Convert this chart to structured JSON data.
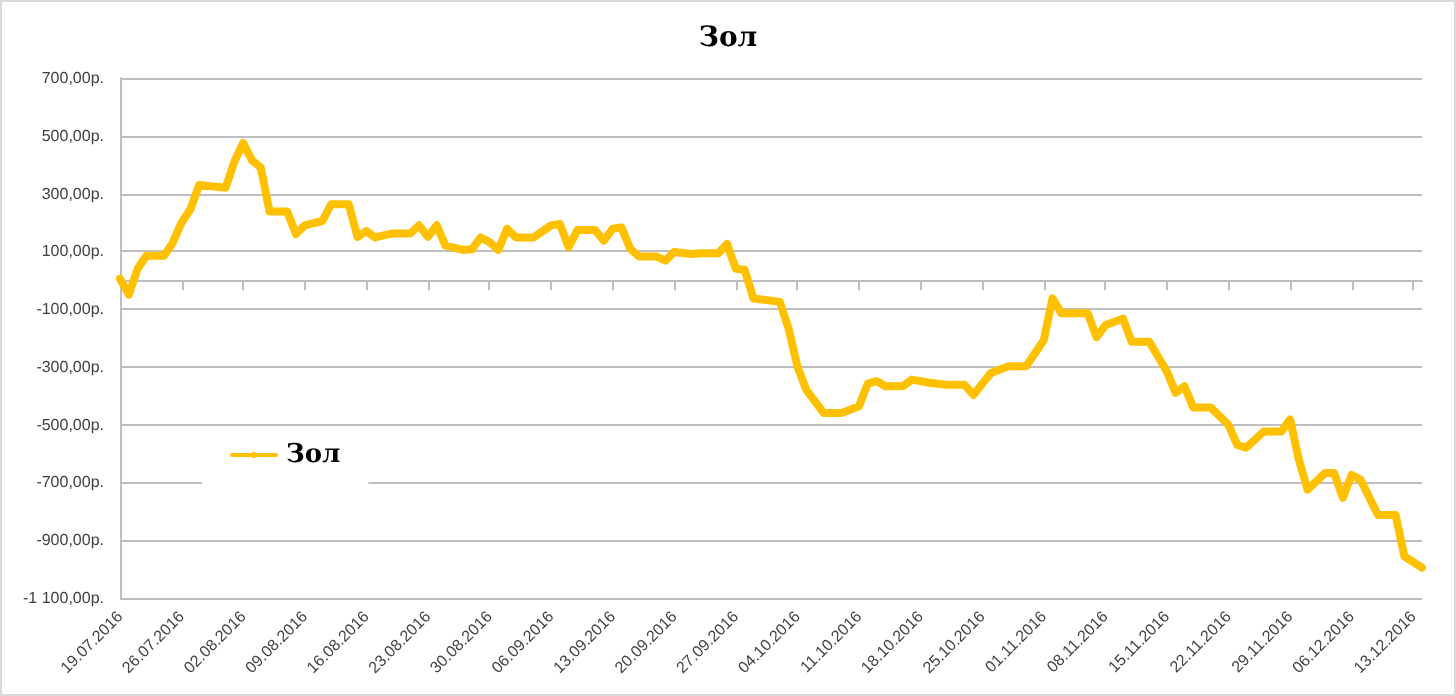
{
  "chart_data": {
    "type": "line",
    "title": "Зол",
    "legend": "left",
    "grid": "y",
    "marker": "none",
    "line_style": "solid",
    "xlim": [
      "2016-07-19",
      "2016-12-14"
    ],
    "xticks": [
      {
        "value": "2016-07-19",
        "label": "19.07.2016"
      },
      {
        "value": "2016-07-26",
        "label": "26.07.2016"
      },
      {
        "value": "2016-08-02",
        "label": "02.08.2016"
      },
      {
        "value": "2016-08-09",
        "label": "09.08.2016"
      },
      {
        "value": "2016-08-16",
        "label": "16.08.2016"
      },
      {
        "value": "2016-08-23",
        "label": "23.08.2016"
      },
      {
        "value": "2016-08-30",
        "label": "30.08.2016"
      },
      {
        "value": "2016-09-06",
        "label": "06.09.2016"
      },
      {
        "value": "2016-09-13",
        "label": "13.09.2016"
      },
      {
        "value": "2016-09-20",
        "label": "20.09.2016"
      },
      {
        "value": "2016-09-27",
        "label": "27.09.2016"
      },
      {
        "value": "2016-10-04",
        "label": "04.10.2016"
      },
      {
        "value": "2016-10-11",
        "label": "11.10.2016"
      },
      {
        "value": "2016-10-18",
        "label": "18.10.2016"
      },
      {
        "value": "2016-10-25",
        "label": "25.10.2016"
      },
      {
        "value": "2016-11-01",
        "label": "01.11.2016"
      },
      {
        "value": "2016-11-08",
        "label": "08.11.2016"
      },
      {
        "value": "2016-11-15",
        "label": "15.11.2016"
      },
      {
        "value": "2016-11-22",
        "label": "22.11.2016"
      },
      {
        "value": "2016-11-29",
        "label": "29.11.2016"
      },
      {
        "value": "2016-12-06",
        "label": "06.12.2016"
      },
      {
        "value": "2016-12-13",
        "label": "13.12.2016"
      }
    ],
    "ylim": [
      -1100,
      700
    ],
    "yticks": [
      {
        "value": -1100,
        "label": "-1 100,00р."
      },
      {
        "value": -900,
        "label": "-900,00р."
      },
      {
        "value": -700,
        "label": "-700,00р."
      },
      {
        "value": -500,
        "label": "-500,00р."
      },
      {
        "value": -300,
        "label": "-300,00р."
      },
      {
        "value": -100,
        "label": "-100,00р."
      },
      {
        "value": 100,
        "label": "100,00р."
      },
      {
        "value": 300,
        "label": "300,00р."
      },
      {
        "value": 500,
        "label": "500,00р."
      },
      {
        "value": 700,
        "label": "700,00р."
      }
    ],
    "x": [
      "2016-07-19",
      "2016-07-20",
      "2016-07-21",
      "2016-07-22",
      "2016-07-24",
      "2016-07-25",
      "2016-07-26",
      "2016-07-27",
      "2016-07-28",
      "2016-07-31",
      "2016-08-01",
      "2016-08-02",
      "2016-08-03",
      "2016-08-04",
      "2016-08-05",
      "2016-08-07",
      "2016-08-08",
      "2016-08-09",
      "2016-08-11",
      "2016-08-12",
      "2016-08-14",
      "2016-08-15",
      "2016-08-16",
      "2016-08-17",
      "2016-08-19",
      "2016-08-21",
      "2016-08-22",
      "2016-08-23",
      "2016-08-24",
      "2016-08-25",
      "2016-08-27",
      "2016-08-28",
      "2016-08-29",
      "2016-08-30",
      "2016-08-31",
      "2016-09-01",
      "2016-09-02",
      "2016-09-04",
      "2016-09-06",
      "2016-09-07",
      "2016-09-08",
      "2016-09-09",
      "2016-09-11",
      "2016-09-12",
      "2016-09-13",
      "2016-09-14",
      "2016-09-15",
      "2016-09-16",
      "2016-09-18",
      "2016-09-19",
      "2016-09-20",
      "2016-09-22",
      "2016-09-23",
      "2016-09-25",
      "2016-09-26",
      "2016-09-27",
      "2016-09-28",
      "2016-09-29",
      "2016-10-02",
      "2016-10-03",
      "2016-10-04",
      "2016-10-05",
      "2016-10-07",
      "2016-10-09",
      "2016-10-11",
      "2016-10-12",
      "2016-10-13",
      "2016-10-14",
      "2016-10-16",
      "2016-10-17",
      "2016-10-19",
      "2016-10-21",
      "2016-10-23",
      "2016-10-24",
      "2016-10-26",
      "2016-10-28",
      "2016-10-30",
      "2016-11-01",
      "2016-11-02",
      "2016-11-03",
      "2016-11-06",
      "2016-11-07",
      "2016-11-08",
      "2016-11-10",
      "2016-11-11",
      "2016-11-13",
      "2016-11-15",
      "2016-11-16",
      "2016-11-17",
      "2016-11-18",
      "2016-11-20",
      "2016-11-22",
      "2016-11-23",
      "2016-11-24",
      "2016-11-26",
      "2016-11-28",
      "2016-11-29",
      "2016-11-30",
      "2016-12-01",
      "2016-12-03",
      "2016-12-04",
      "2016-12-05",
      "2016-12-06",
      "2016-12-07",
      "2016-12-09",
      "2016-12-11",
      "2016-12-12",
      "2016-12-14"
    ],
    "series": [
      {
        "name": "Зол",
        "color": "#ffc000",
        "values": [
          5,
          -50,
          40,
          85,
          85,
          130,
          200,
          245,
          330,
          320,
          410,
          475,
          415,
          390,
          238,
          238,
          160,
          190,
          205,
          263,
          263,
          150,
          170,
          148,
          162,
          162,
          190,
          150,
          190,
          120,
          105,
          107,
          148,
          132,
          105,
          178,
          148,
          148,
          190,
          195,
          114,
          174,
          174,
          137,
          178,
          183,
          109,
          82,
          82,
          68,
          98,
          91,
          93,
          93,
          125,
          40,
          36,
          -63,
          -75,
          -168,
          -298,
          -379,
          -460,
          -460,
          -436,
          -358,
          -349,
          -367,
          -367,
          -344,
          -355,
          -362,
          -362,
          -397,
          -321,
          -298,
          -298,
          -208,
          -63,
          -114,
          -114,
          -197,
          -156,
          -133,
          -213,
          -213,
          -316,
          -390,
          -367,
          -441,
          -441,
          -501,
          -570,
          -580,
          -524,
          -524,
          -482,
          -621,
          -725,
          -667,
          -667,
          -753,
          -674,
          -690,
          -813,
          -813,
          -956,
          -995
        ]
      }
    ]
  }
}
